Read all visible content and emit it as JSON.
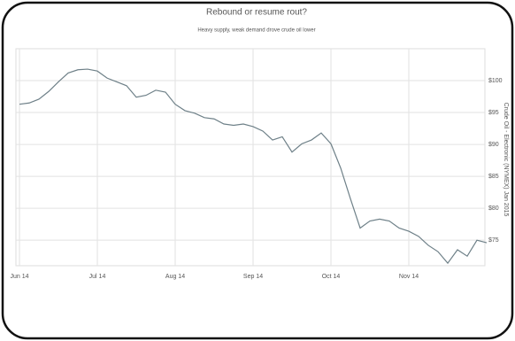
{
  "chart_data": {
    "type": "line",
    "title": "Rebound or resume rout?",
    "subtitle": "Heavy supply, weak demand drove crude oil lower",
    "y_label": "Crude Oil - Electronic (NYMEX) Jan 2015",
    "categories": [
      "Jun 14",
      null,
      null,
      null,
      null,
      null,
      null,
      null,
      "Jul 14",
      null,
      null,
      null,
      null,
      null,
      null,
      null,
      "Aug 14",
      null,
      null,
      null,
      null,
      null,
      null,
      null,
      "Sep 14",
      null,
      null,
      null,
      null,
      null,
      null,
      null,
      "Oct 14",
      null,
      null,
      null,
      null,
      null,
      null,
      null,
      "Nov 14",
      null,
      null,
      null,
      null,
      null,
      null,
      null,
      null
    ],
    "series": [
      {
        "name": "Crude Oil",
        "color": "#6e8088",
        "values": [
          96.3,
          96.5,
          97.1,
          98.3,
          99.8,
          101.2,
          101.7,
          101.8,
          101.5,
          100.4,
          99.8,
          99.2,
          97.4,
          97.7,
          98.5,
          98.2,
          96.3,
          95.3,
          94.9,
          94.2,
          94.0,
          93.2,
          93.0,
          93.2,
          92.8,
          92.1,
          90.7,
          91.2,
          88.8,
          90.1,
          90.7,
          91.8,
          90.1,
          86.3,
          81.5,
          76.9,
          78.0,
          78.3,
          78.0,
          76.9,
          76.4,
          75.6,
          74.2,
          73.2,
          71.4,
          73.5,
          72.5,
          75.0,
          74.6
        ]
      }
    ],
    "ylim": [
      71,
      105
    ],
    "yticks": [
      {
        "value": 75,
        "label": "$75"
      },
      {
        "value": 80,
        "label": "$80"
      },
      {
        "value": 85,
        "label": "$85"
      },
      {
        "value": 90,
        "label": "$90"
      },
      {
        "value": 95,
        "label": "$95"
      },
      {
        "value": 100,
        "label": "$100"
      }
    ],
    "grid": true
  }
}
